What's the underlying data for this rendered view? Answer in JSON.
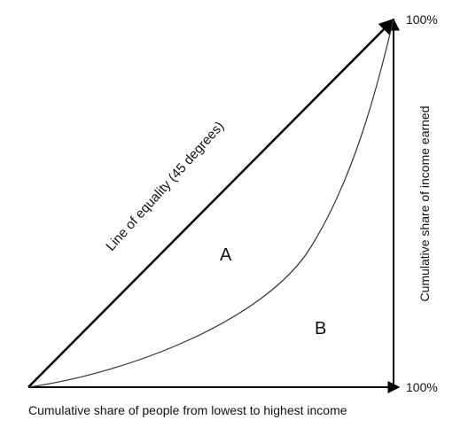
{
  "diagram": {
    "equality_line_label": "Line of equality (45 degrees)",
    "region_a_label": "A",
    "region_b_label": "B",
    "y_top_label": "100%",
    "x_right_label": "100%",
    "x_axis_title": "Cumulative share of people from lowest to highest income",
    "y_axis_title": "Cumulative share of income earned",
    "line_color": "#000000",
    "text_color": "#111111"
  }
}
